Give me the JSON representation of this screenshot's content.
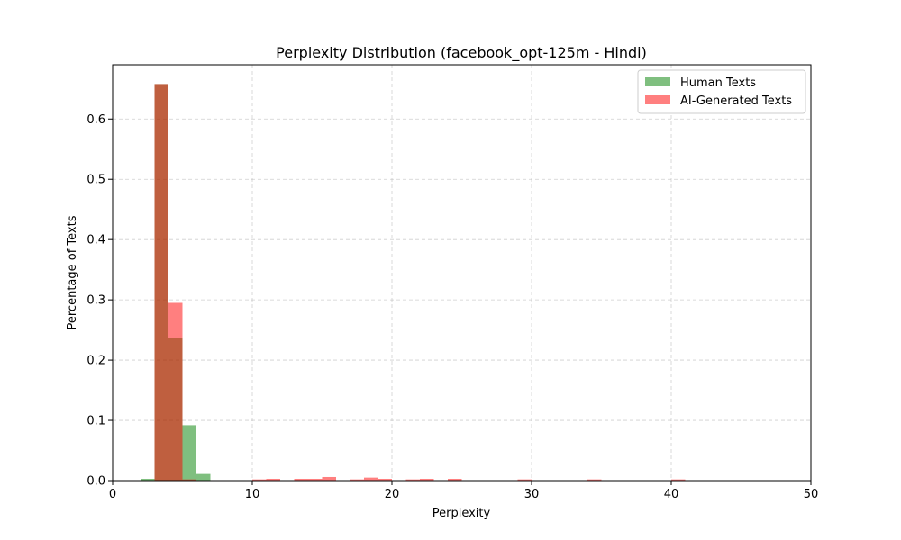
{
  "chart_data": {
    "type": "bar",
    "title": "Perplexity Distribution (facebook_opt-125m - Hindi)",
    "xlabel": "Perplexity",
    "ylabel": "Percentage of Texts",
    "xlim": [
      0,
      50
    ],
    "ylim": [
      0,
      0.69
    ],
    "xticks": [
      0,
      10,
      20,
      30,
      40,
      50
    ],
    "yticks": [
      0.0,
      0.1,
      0.2,
      0.3,
      0.4,
      0.5,
      0.6
    ],
    "grid": true,
    "legend_position": "top-right",
    "series": [
      {
        "name": "Human Texts",
        "color": "#008000",
        "opacity": 0.5,
        "bins": [
          {
            "x0": 2.0,
            "x1": 3.0,
            "value": 0.003
          },
          {
            "x0": 3.0,
            "x1": 4.0,
            "value": 0.658
          },
          {
            "x0": 4.0,
            "x1": 5.0,
            "value": 0.236
          },
          {
            "x0": 5.0,
            "x1": 6.0,
            "value": 0.092
          },
          {
            "x0": 6.0,
            "x1": 7.0,
            "value": 0.011
          }
        ]
      },
      {
        "name": "AI-Generated Texts",
        "color": "#ff0000",
        "opacity": 0.5,
        "bins": [
          {
            "x0": 3.0,
            "x1": 4.0,
            "value": 0.658
          },
          {
            "x0": 4.0,
            "x1": 5.0,
            "value": 0.295
          },
          {
            "x0": 5.0,
            "x1": 6.0,
            "value": 0.002
          },
          {
            "x0": 10.0,
            "x1": 11.0,
            "value": 0.002
          },
          {
            "x0": 11.0,
            "x1": 12.0,
            "value": 0.003
          },
          {
            "x0": 13.0,
            "x1": 14.0,
            "value": 0.003
          },
          {
            "x0": 14.0,
            "x1": 15.0,
            "value": 0.003
          },
          {
            "x0": 15.0,
            "x1": 16.0,
            "value": 0.006
          },
          {
            "x0": 17.0,
            "x1": 18.0,
            "value": 0.002
          },
          {
            "x0": 18.0,
            "x1": 19.0,
            "value": 0.005
          },
          {
            "x0": 19.0,
            "x1": 20.0,
            "value": 0.003
          },
          {
            "x0": 21.0,
            "x1": 22.0,
            "value": 0.002
          },
          {
            "x0": 22.0,
            "x1": 23.0,
            "value": 0.003
          },
          {
            "x0": 24.0,
            "x1": 25.0,
            "value": 0.003
          },
          {
            "x0": 29.0,
            "x1": 30.0,
            "value": 0.002
          },
          {
            "x0": 34.0,
            "x1": 35.0,
            "value": 0.002
          },
          {
            "x0": 40.0,
            "x1": 41.0,
            "value": 0.002
          }
        ]
      }
    ]
  }
}
